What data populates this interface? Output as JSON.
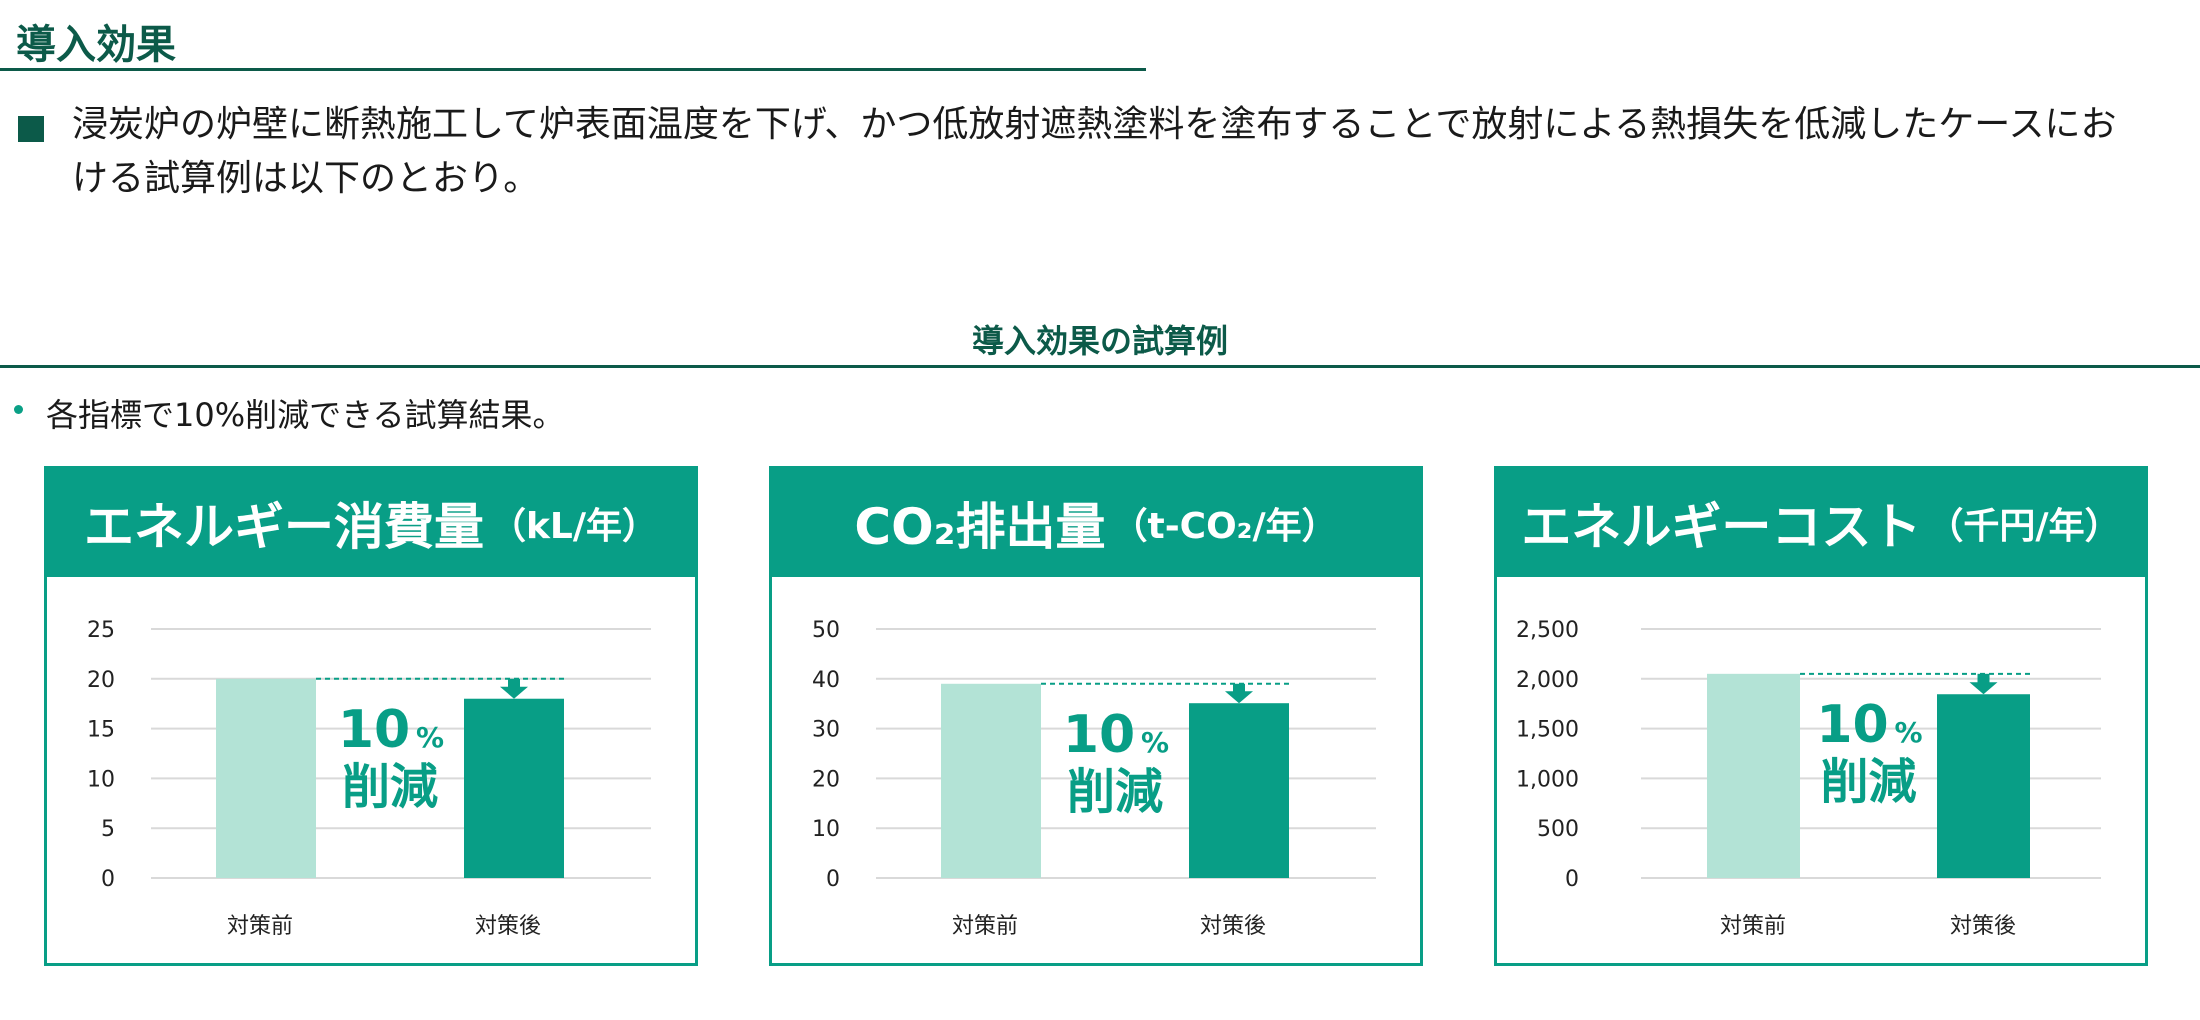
{
  "header": {
    "title": "導入効果"
  },
  "intro": {
    "text": "浸炭炉の炉壁に断熱施工して炉表面温度を下げ、かつ低放射遮熱塗料を塗布することで放射による熱損失を低減したケースにおける試算例は以下のとおり。"
  },
  "section": {
    "title": "導入効果の試算例",
    "bullet": "各指標で10%削減できる試算結果。"
  },
  "colors": {
    "primary": "#089e86",
    "dark": "#0c5a49",
    "before_bar": "#b3e3d6",
    "after_bar": "#089e86",
    "grid": "#d9d9d9"
  },
  "chart_data": [
    {
      "type": "bar",
      "title": "エネルギー消費量",
      "unit": "（kL/年）",
      "categories": [
        "対策前",
        "対策後"
      ],
      "values": [
        20,
        18
      ],
      "ylim": [
        0,
        25
      ],
      "yticks": [
        0,
        5,
        10,
        15,
        20,
        25
      ],
      "ytick_labels": [
        "0",
        "5",
        "10",
        "15",
        "20",
        "25"
      ],
      "grid": true,
      "annotation": {
        "value": "10",
        "symbol": "%",
        "word": "削減"
      }
    },
    {
      "type": "bar",
      "title": "CO₂排出量",
      "unit": "（t-CO₂/年）",
      "categories": [
        "対策前",
        "対策後"
      ],
      "values": [
        39,
        35.1
      ],
      "ylim": [
        0,
        50
      ],
      "yticks": [
        0,
        10,
        20,
        30,
        40,
        50
      ],
      "ytick_labels": [
        "0",
        "10",
        "20",
        "30",
        "40",
        "50"
      ],
      "grid": true,
      "annotation": {
        "value": "10",
        "symbol": "%",
        "word": "削減"
      }
    },
    {
      "type": "bar",
      "title": "エネルギーコスト",
      "unit": "（千円/年）",
      "categories": [
        "対策前",
        "対策後"
      ],
      "values": [
        2050,
        1845
      ],
      "ylim": [
        0,
        2500
      ],
      "yticks": [
        0,
        500,
        1000,
        1500,
        2000,
        2500
      ],
      "ytick_labels": [
        "0",
        "500",
        "1,000",
        "1,500",
        "2,000",
        "2,500"
      ],
      "grid": true,
      "annotation": {
        "value": "10",
        "symbol": "%",
        "word": "削減"
      }
    }
  ]
}
